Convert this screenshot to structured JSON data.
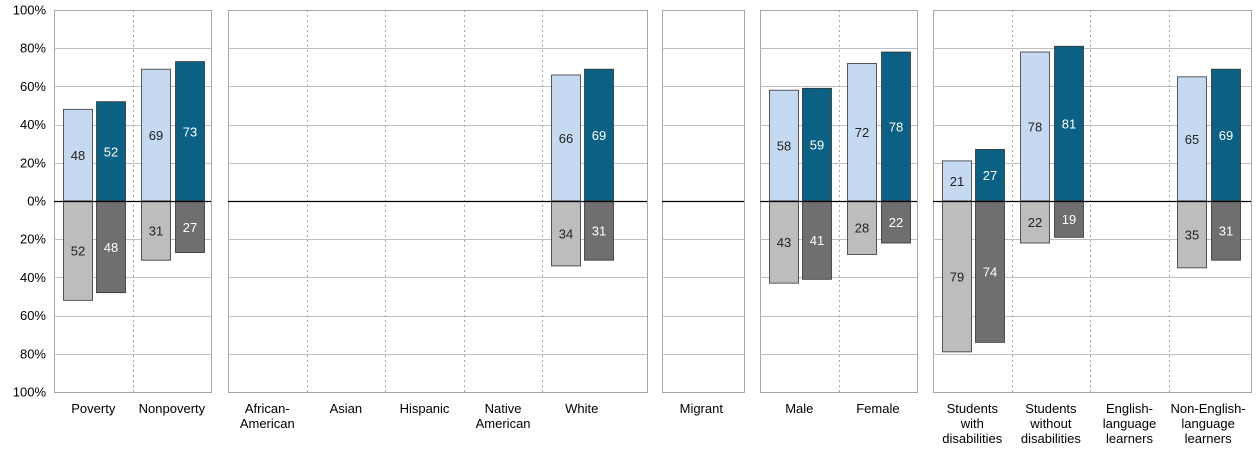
{
  "chart_data": {
    "type": "bar",
    "subtype": "diverging-stacked-paired",
    "ylim": [
      -100,
      100
    ],
    "y_ticks": [
      "100%",
      "80%",
      "60%",
      "40%",
      "20%",
      "0%",
      "20%",
      "40%",
      "60%",
      "80%",
      "100%"
    ],
    "y_tick_values": [
      100,
      80,
      60,
      40,
      20,
      0,
      -20,
      -40,
      -60,
      -80,
      -100
    ],
    "grid": true,
    "legend": "none",
    "colors": {
      "bar1_positive": "#c5daf0",
      "bar2_positive": "#0b6183",
      "bar1_negative": "#bdbdbd",
      "bar2_negative": "#6f6f6f",
      "label_dark": "#222222",
      "label_light": "#ffffff",
      "grid": "#bfbfbf",
      "axis": "#000000"
    },
    "groups": [
      {
        "categories": [
          {
            "label": [
              "Poverty"
            ],
            "bar1": {
              "pos": 48,
              "neg": 52
            },
            "bar2": {
              "pos": 52,
              "neg": 48
            }
          },
          {
            "label": [
              "Nonpoverty"
            ],
            "bar1": {
              "pos": 69,
              "neg": 31
            },
            "bar2": {
              "pos": 73,
              "neg": 27
            }
          }
        ]
      },
      {
        "categories": [
          {
            "label": [
              "African-",
              "American"
            ],
            "bar1": null,
            "bar2": null
          },
          {
            "label": [
              "Asian"
            ],
            "bar1": null,
            "bar2": null
          },
          {
            "label": [
              "Hispanic"
            ],
            "bar1": null,
            "bar2": null
          },
          {
            "label": [
              "Native",
              "American"
            ],
            "bar1": null,
            "bar2": null
          },
          {
            "label": [
              "White"
            ],
            "bar1": {
              "pos": 66,
              "neg": 34
            },
            "bar2": {
              "pos": 69,
              "neg": 31
            }
          }
        ]
      },
      {
        "categories": [
          {
            "label": [
              "Migrant"
            ],
            "bar1": null,
            "bar2": null
          }
        ]
      },
      {
        "categories": [
          {
            "label": [
              "Male"
            ],
            "bar1": {
              "pos": 58,
              "neg": 43
            },
            "bar2": {
              "pos": 59,
              "neg": 41
            }
          },
          {
            "label": [
              "Female"
            ],
            "bar1": {
              "pos": 72,
              "neg": 28
            },
            "bar2": {
              "pos": 78,
              "neg": 22
            }
          }
        ]
      },
      {
        "categories": [
          {
            "label": [
              "Students",
              "with",
              "disabilities"
            ],
            "bar1": {
              "pos": 21,
              "neg": 79
            },
            "bar2": {
              "pos": 27,
              "neg": 74
            }
          },
          {
            "label": [
              "Students",
              "without",
              "disabilities"
            ],
            "bar1": {
              "pos": 78,
              "neg": 22
            },
            "bar2": {
              "pos": 81,
              "neg": 19
            }
          },
          {
            "label": [
              "English-",
              "language",
              "learners"
            ],
            "bar1": null,
            "bar2": null
          },
          {
            "label": [
              "Non-English-",
              "language",
              "learners"
            ],
            "bar1": {
              "pos": 65,
              "neg": 35
            },
            "bar2": {
              "pos": 69,
              "neg": 31
            }
          }
        ]
      }
    ]
  }
}
